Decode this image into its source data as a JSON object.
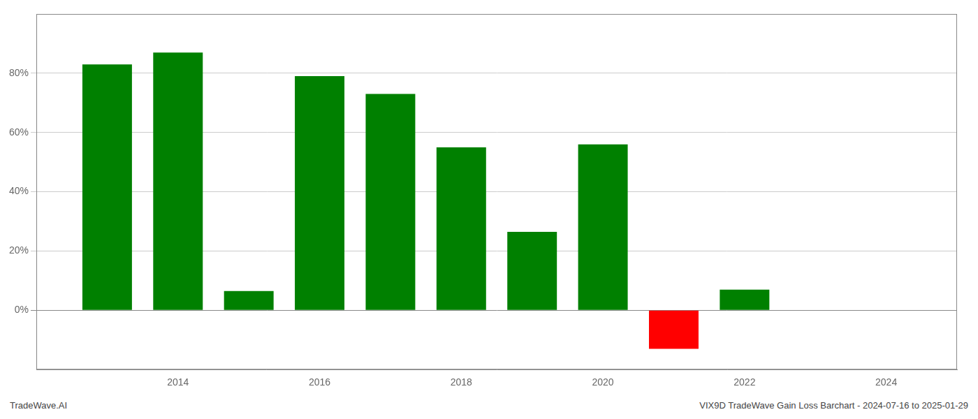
{
  "chart_data": {
    "type": "bar",
    "x": [
      2013,
      2014,
      2015,
      2016,
      2017,
      2018,
      2019,
      2020,
      2021,
      2022
    ],
    "values": [
      0.83,
      0.87,
      0.065,
      0.79,
      0.73,
      0.55,
      0.265,
      0.56,
      -0.13,
      0.07
    ],
    "colors": [
      "#008000",
      "#008000",
      "#008000",
      "#008000",
      "#008000",
      "#008000",
      "#008000",
      "#008000",
      "#ff0000",
      "#008000"
    ],
    "xlim": [
      2012.0,
      2025.0
    ],
    "ylim": [
      -0.2,
      1.0
    ],
    "xticks": [
      2014,
      2016,
      2018,
      2020,
      2022,
      2024
    ],
    "yticks": [
      {
        "value": 0.0,
        "label": "0%"
      },
      {
        "value": 0.2,
        "label": "20%"
      },
      {
        "value": 0.4,
        "label": "40%"
      },
      {
        "value": 0.6,
        "label": "60%"
      },
      {
        "value": 0.8,
        "label": "80%"
      }
    ],
    "grid": "y",
    "annotations": [
      "TradeWave.AI",
      "VIX9D TradeWave Gain Loss Barchart - 2024-07-16 to 2025-01-29"
    ]
  }
}
